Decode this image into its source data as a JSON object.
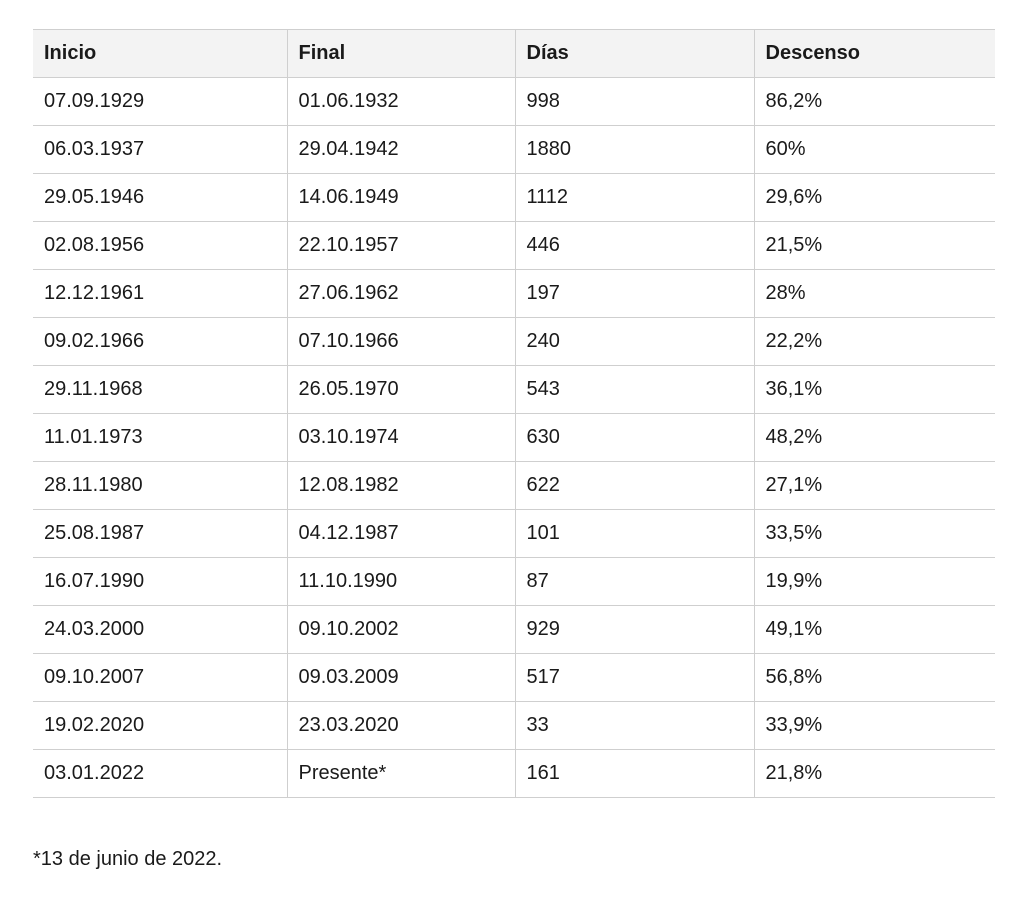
{
  "table": {
    "headers": [
      "Inicio",
      "Final",
      "Días",
      "Descenso"
    ],
    "rows": [
      [
        "07.09.1929",
        "01.06.1932",
        "998",
        "86,2%"
      ],
      [
        "06.03.1937",
        "29.04.1942",
        "1880",
        "60%"
      ],
      [
        "29.05.1946",
        "14.06.1949",
        "1112",
        "29,6%"
      ],
      [
        "02.08.1956",
        "22.10.1957",
        "446",
        "21,5%"
      ],
      [
        "12.12.1961",
        "27.06.1962",
        "197",
        "28%"
      ],
      [
        "09.02.1966",
        "07.10.1966",
        "240",
        "22,2%"
      ],
      [
        "29.11.1968",
        "26.05.1970",
        "543",
        "36,1%"
      ],
      [
        "11.01.1973",
        "03.10.1974",
        "630",
        "48,2%"
      ],
      [
        "28.11.1980",
        "12.08.1982",
        "622",
        "27,1%"
      ],
      [
        "25.08.1987",
        "04.12.1987",
        "101",
        "33,5%"
      ],
      [
        "16.07.1990",
        "11.10.1990",
        "87",
        "19,9%"
      ],
      [
        "24.03.2000",
        "09.10.2002",
        "929",
        "49,1%"
      ],
      [
        "09.10.2007",
        "09.03.2009",
        "517",
        "56,8%"
      ],
      [
        "19.02.2020",
        "23.03.2020",
        "33",
        "33,9%"
      ],
      [
        "03.01.2022",
        "Presente*",
        "161",
        "21,8%"
      ]
    ]
  },
  "footnote": "*13 de junio de 2022."
}
